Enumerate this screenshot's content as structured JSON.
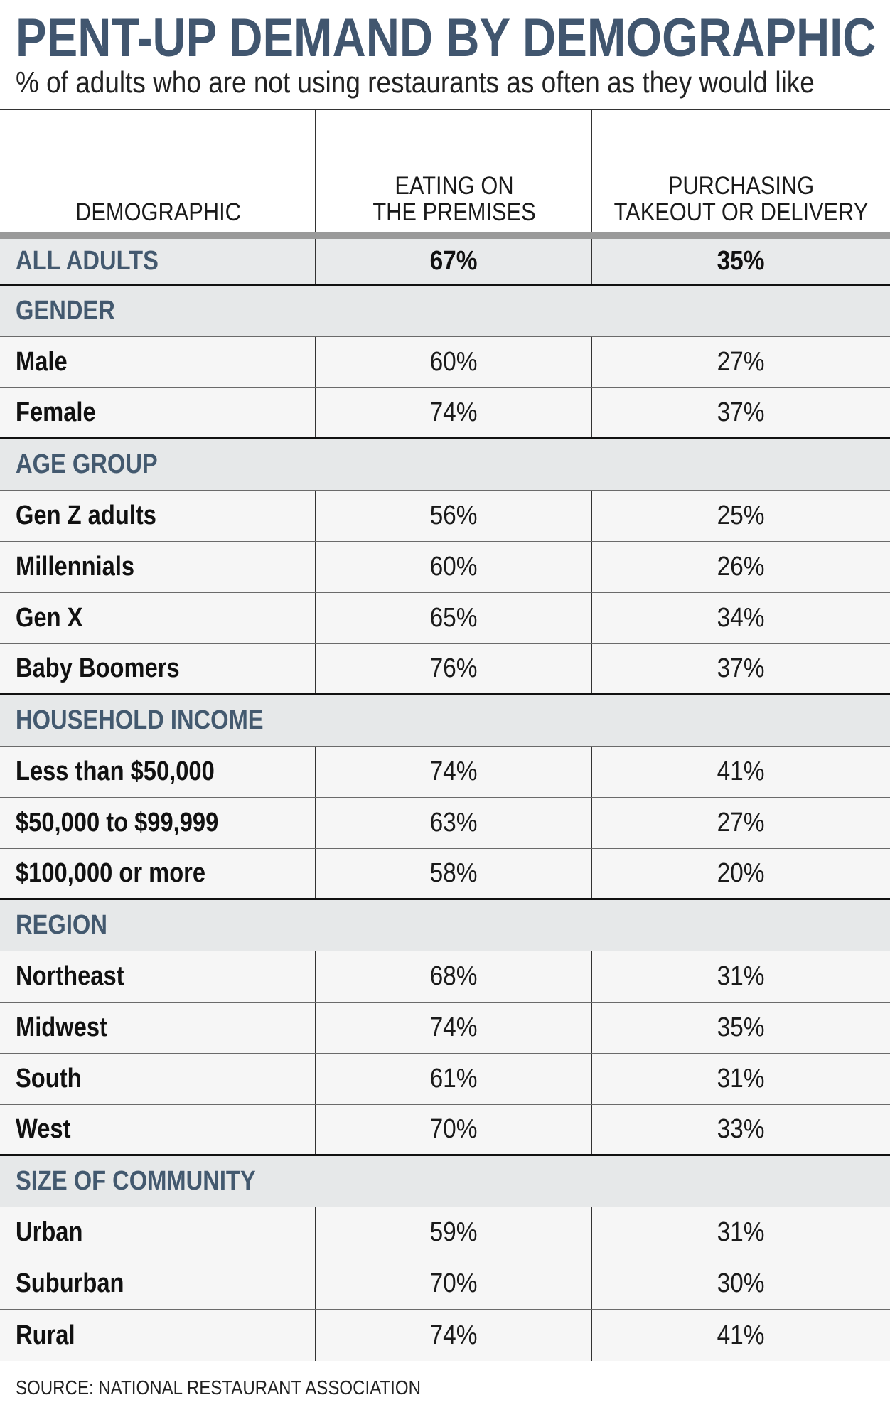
{
  "title": "PENT-UP DEMAND BY DEMOGRAPHIC",
  "subtitle": "% of adults who are not using restaurants as often as they would like",
  "source": "SOURCE: NATIONAL RESTAURANT ASSOCIATION",
  "colors": {
    "accent": "#41566f",
    "section_bg": "#e6e8e9",
    "row_bg": "#f6f6f6",
    "rule": "#111111"
  },
  "chart_data": {
    "type": "table",
    "title": "PENT-UP DEMAND BY DEMOGRAPHIC",
    "subtitle": "% of adults who are not using restaurants as often as they would like",
    "columns": [
      "DEMOGRAPHIC",
      "EATING ON\nTHE PREMISES",
      "PURCHASING\nTAKEOUT OR DELIVERY"
    ],
    "all_adults": {
      "label": "ALL ADULTS",
      "eating": "67%",
      "takeout": "35%"
    },
    "groups": [
      {
        "name": "GENDER",
        "rows": [
          {
            "label": "Male",
            "eating": "60%",
            "takeout": "27%"
          },
          {
            "label": "Female",
            "eating": "74%",
            "takeout": "37%"
          }
        ]
      },
      {
        "name": "AGE GROUP",
        "rows": [
          {
            "label": "Gen Z adults",
            "eating": "56%",
            "takeout": "25%"
          },
          {
            "label": "Millennials",
            "eating": "60%",
            "takeout": "26%"
          },
          {
            "label": "Gen X",
            "eating": "65%",
            "takeout": "34%"
          },
          {
            "label": "Baby Boomers",
            "eating": "76%",
            "takeout": "37%"
          }
        ]
      },
      {
        "name": "HOUSEHOLD INCOME",
        "rows": [
          {
            "label": "Less than $50,000",
            "eating": "74%",
            "takeout": "41%"
          },
          {
            "label": "$50,000 to $99,999",
            "eating": "63%",
            "takeout": "27%"
          },
          {
            "label": "$100,000 or more",
            "eating": "58%",
            "takeout": "20%"
          }
        ]
      },
      {
        "name": "REGION",
        "rows": [
          {
            "label": "Northeast",
            "eating": "68%",
            "takeout": "31%"
          },
          {
            "label": "Midwest",
            "eating": "74%",
            "takeout": "35%"
          },
          {
            "label": "South",
            "eating": "61%",
            "takeout": "31%"
          },
          {
            "label": "West",
            "eating": "70%",
            "takeout": "33%"
          }
        ]
      },
      {
        "name": "SIZE OF COMMUNITY",
        "rows": [
          {
            "label": "Urban",
            "eating": "59%",
            "takeout": "31%"
          },
          {
            "label": "Suburban",
            "eating": "70%",
            "takeout": "30%"
          },
          {
            "label": "Rural",
            "eating": "74%",
            "takeout": "41%"
          }
        ]
      }
    ]
  }
}
